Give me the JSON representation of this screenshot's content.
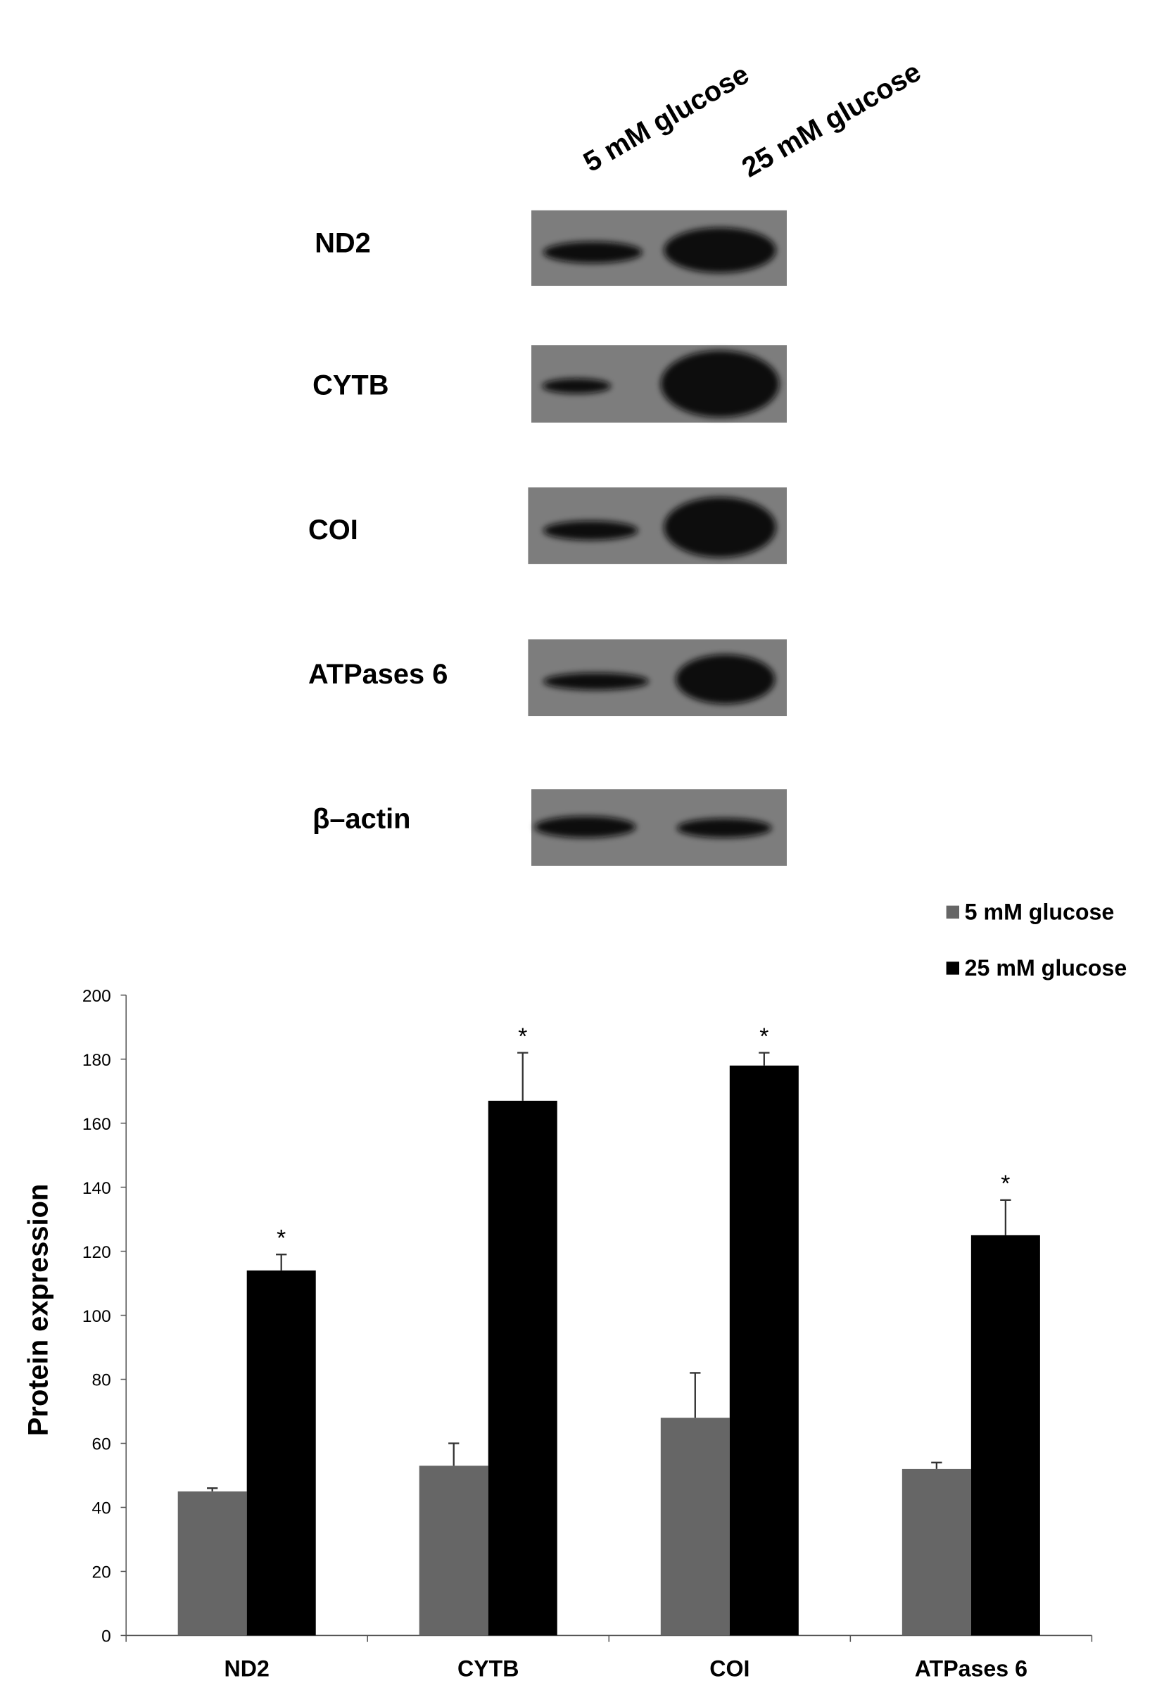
{
  "blot": {
    "lanes": [
      "5 mM glucose",
      "25 mM glucose"
    ],
    "rows": [
      "ND2",
      "CYTB",
      "COI",
      "ATPases 6",
      "β–actin"
    ]
  },
  "chart_data": {
    "type": "bar",
    "y_label": "Protein expression",
    "categories": [
      "ND2",
      "CYTB",
      "COI",
      "ATPases 6"
    ],
    "series": [
      {
        "name": "5 mM glucose",
        "color": "#666666",
        "values": [
          45,
          53,
          68,
          52
        ],
        "errors": [
          1,
          7,
          14,
          2
        ]
      },
      {
        "name": "25 mM glucose",
        "color": "#000000",
        "values": [
          114,
          167,
          178,
          125
        ],
        "errors": [
          5,
          15,
          4,
          11
        ],
        "annotations": [
          "*",
          "*",
          "*",
          "*"
        ]
      }
    ],
    "ylim": [
      0,
      200
    ],
    "yticks": [
      0,
      20,
      40,
      60,
      80,
      100,
      120,
      140,
      160,
      180,
      200
    ],
    "legend": "top-right"
  }
}
